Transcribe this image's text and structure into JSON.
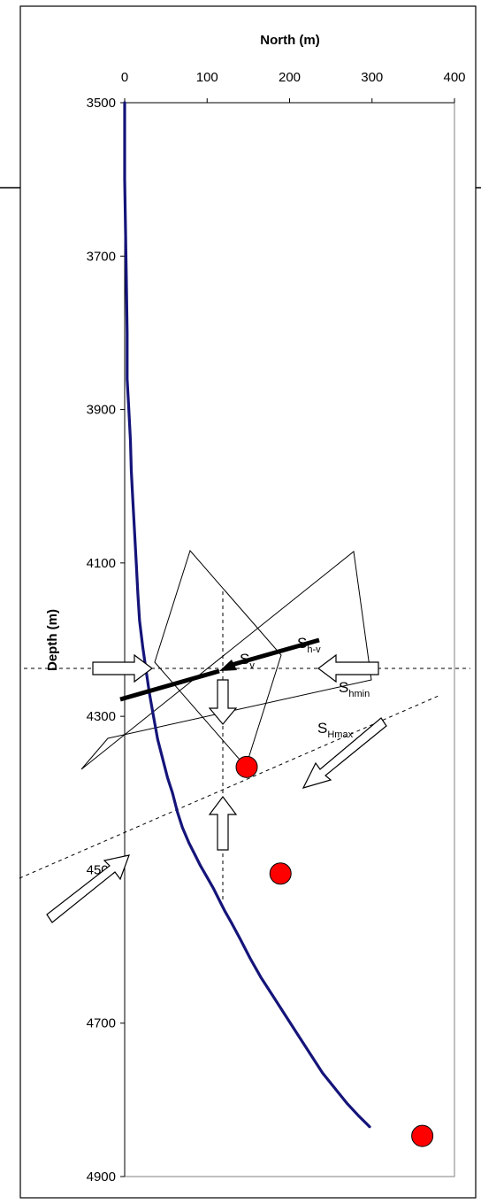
{
  "chart_data": {
    "type": "line",
    "xlabel": "North (m)",
    "ylabel": "Depth (m)",
    "xlim": [
      0,
      400
    ],
    "ylim": [
      3500,
      4900
    ],
    "y_inverted": true,
    "x_axis_position": "top",
    "xticks": [
      0,
      100,
      200,
      300,
      400
    ],
    "yticks": [
      3500,
      3700,
      3900,
      4100,
      4300,
      4500,
      4700,
      4900
    ],
    "grid": false,
    "series": [
      {
        "type": "line",
        "color": "#14147a",
        "x": [
          0,
          0,
          2,
          3,
          3,
          5,
          7,
          8,
          10,
          12,
          14,
          16,
          18,
          22,
          26,
          30,
          35,
          40,
          46,
          52,
          58,
          64,
          70,
          78,
          85,
          92,
          100,
          108,
          115,
          122,
          130,
          140,
          152,
          165,
          180,
          195,
          210,
          225,
          240,
          255,
          270,
          283,
          297
        ],
        "y": [
          3500,
          3600,
          3730,
          3800,
          3860,
          3900,
          3940,
          3980,
          4020,
          4060,
          4100,
          4140,
          4175,
          4210,
          4240,
          4270,
          4300,
          4330,
          4355,
          4380,
          4400,
          4425,
          4445,
          4465,
          4480,
          4495,
          4510,
          4525,
          4540,
          4555,
          4570,
          4590,
          4615,
          4640,
          4665,
          4690,
          4715,
          4740,
          4765,
          4785,
          4805,
          4820,
          4835
        ]
      },
      {
        "type": "scatter",
        "color": "#ff0000",
        "x": [
          148,
          189,
          361
        ],
        "y": [
          4366,
          4505,
          4847
        ]
      }
    ]
  },
  "annotations": {
    "sv": {
      "main": "S",
      "sub": "v"
    },
    "shmax": {
      "main": "S",
      "sub": "Hmax"
    },
    "shv": {
      "main": "S",
      "sub": "h-v"
    },
    "shmin": {
      "main": "S",
      "sub": "hmin"
    }
  }
}
